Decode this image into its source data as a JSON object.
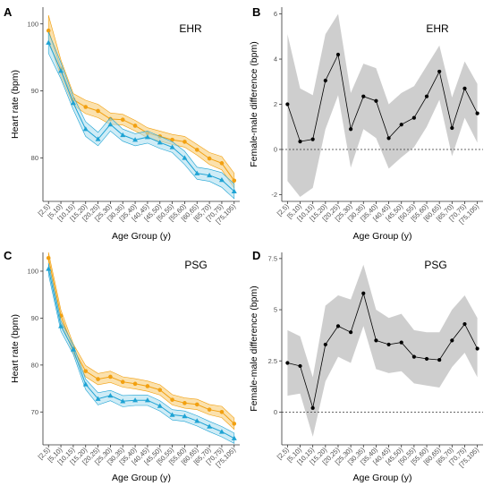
{
  "colors": {
    "female": "#f2a010",
    "female_band": "#f7c96a",
    "male": "#1ea3d4",
    "male_band": "#a8dcef",
    "diff_line": "#000000",
    "diff_band": "#bdbdbd"
  },
  "chart_data": [
    {
      "panel": "A",
      "type": "line",
      "tag": "EHR",
      "xlabel": "Age Group (y)",
      "ylabel": "Heart rate (bpm)",
      "categories": [
        "[2,5)",
        "[5,10)",
        "[10,15)",
        "[15,20)",
        "[20,25)",
        "[25,30)",
        "[30,35)",
        "[35,40)",
        "[40,45)",
        "[45,50)",
        "[50,55)",
        "[55,60)",
        "[60,65)",
        "[65,70)",
        "[70,75)",
        "[75,105)"
      ],
      "yticks": [
        80,
        90,
        100
      ],
      "ylim": [
        73.5,
        102.5
      ],
      "series": [
        {
          "marker": "circle",
          "color": "female",
          "values": [
            99,
            93.3,
            88.7,
            87.6,
            87.0,
            85.8,
            85.7,
            84.8,
            83.7,
            83.2,
            82.7,
            82.4,
            81.2,
            79.9,
            79.2,
            76.6
          ],
          "lower": [
            97.7,
            92.1,
            87.9,
            86.6,
            86.0,
            85.0,
            84.9,
            84.0,
            83.0,
            82.5,
            82.0,
            81.6,
            80.4,
            79.0,
            78.2,
            75.5
          ],
          "upper": [
            101.3,
            94.6,
            89.6,
            88.6,
            88.0,
            86.7,
            86.5,
            85.6,
            84.5,
            84.0,
            83.5,
            83.2,
            82.0,
            80.8,
            80.2,
            77.7
          ]
        },
        {
          "marker": "triangle",
          "color": "male",
          "values": [
            97.2,
            93.0,
            88.2,
            84.3,
            82.8,
            85.0,
            83.4,
            82.7,
            83.1,
            82.3,
            81.6,
            80.0,
            77.7,
            77.4,
            76.7,
            75.0
          ],
          "lower": [
            95.6,
            91.8,
            87.2,
            83.2,
            81.8,
            84.0,
            82.5,
            81.8,
            82.2,
            81.4,
            80.8,
            79.0,
            76.8,
            76.5,
            75.6,
            73.9
          ],
          "upper": [
            98.8,
            94.2,
            89.2,
            85.4,
            83.8,
            86.0,
            84.3,
            83.6,
            84.0,
            83.2,
            82.4,
            81.0,
            78.6,
            78.3,
            77.8,
            76.1
          ]
        }
      ]
    },
    {
      "panel": "B",
      "type": "line",
      "tag": "EHR",
      "xlabel": "Age Group (y)",
      "ylabel": "Female-male difference (bpm)",
      "categories": [
        "[2,5)",
        "[5,10)",
        "[10,15)",
        "[15,20)",
        "[20,25)",
        "[25,30)",
        "[30,35)",
        "[35,40)",
        "[40,45)",
        "[45,50)",
        "[50,55)",
        "[55,60)",
        "[60,65)",
        "[65,70)",
        "[70,75)",
        "[75,105)"
      ],
      "yticks": [
        -2,
        0,
        2,
        4,
        6
      ],
      "ylim": [
        -2.3,
        6.3
      ],
      "reference_line": 0,
      "values": [
        2.0,
        0.35,
        0.45,
        3.05,
        4.2,
        0.9,
        2.35,
        2.15,
        0.5,
        1.1,
        1.4,
        2.35,
        3.45,
        0.95,
        2.7,
        1.6
      ],
      "lower": [
        -1.4,
        -2.1,
        -1.7,
        0.9,
        2.4,
        -0.8,
        0.9,
        0.5,
        -0.85,
        -0.35,
        0.1,
        1.0,
        2.2,
        -0.3,
        1.4,
        0.3
      ],
      "upper": [
        5.1,
        2.7,
        2.4,
        5.1,
        6.0,
        2.5,
        3.8,
        3.6,
        2.0,
        2.5,
        2.8,
        3.7,
        4.6,
        2.3,
        3.9,
        2.9
      ]
    },
    {
      "panel": "C",
      "type": "line",
      "tag": "PSG",
      "xlabel": "Age Group (y)",
      "ylabel": "Heart rate (bpm)",
      "categories": [
        "[2,5)",
        "[5,10)",
        "[10,15)",
        "[15,20)",
        "[20,25)",
        "[25,30)",
        "[30,35)",
        "[35,40)",
        "[40,45)",
        "[45,50)",
        "[50,55)",
        "[55,60)",
        "[60,65)",
        "[65,70)",
        "[70,75)",
        "[75,105)"
      ],
      "yticks": [
        70,
        80,
        90,
        100
      ],
      "ylim": [
        63,
        104
      ],
      "series": [
        {
          "marker": "circle",
          "color": "female",
          "values": [
            102.8,
            90.5,
            83.5,
            78.7,
            77.0,
            77.5,
            76.4,
            76.0,
            75.5,
            74.7,
            72.6,
            71.9,
            71.6,
            70.5,
            70.0,
            67.5
          ],
          "lower": [
            101.5,
            89.3,
            82.5,
            77.5,
            75.8,
            76.3,
            75.3,
            74.9,
            74.4,
            73.6,
            71.5,
            70.8,
            70.5,
            69.4,
            68.8,
            66.3
          ],
          "upper": [
            104.0,
            91.7,
            84.5,
            79.9,
            78.2,
            78.7,
            77.5,
            77.1,
            76.6,
            75.8,
            73.7,
            73.0,
            72.7,
            71.6,
            71.2,
            68.7
          ]
        },
        {
          "marker": "triangle",
          "color": "male",
          "values": [
            100.5,
            88.3,
            83.3,
            75.9,
            72.8,
            73.5,
            72.3,
            72.5,
            72.5,
            71.3,
            69.4,
            69.1,
            68.1,
            66.9,
            65.8,
            64.4
          ],
          "lower": [
            99.3,
            87.2,
            82.3,
            74.8,
            71.5,
            72.4,
            71.1,
            71.4,
            71.4,
            70.2,
            68.3,
            68.0,
            67.0,
            65.8,
            64.7,
            63.3
          ],
          "upper": [
            101.7,
            89.4,
            84.3,
            77.0,
            74.1,
            74.6,
            73.5,
            73.6,
            73.6,
            72.4,
            70.5,
            70.2,
            69.2,
            68.0,
            66.9,
            65.5
          ]
        }
      ]
    },
    {
      "panel": "D",
      "type": "line",
      "tag": "PSG",
      "xlabel": "Age Group (y)",
      "ylabel": "Female-male difference (bpm)",
      "categories": [
        "[2,5)",
        "[5,10)",
        "[10,15)",
        "[15,20)",
        "[20,25)",
        "[25,30)",
        "[30,35)",
        "[35,40)",
        "[40,45)",
        "[45,50)",
        "[50,55)",
        "[55,60)",
        "[60,65)",
        "[65,70)",
        "[70,75)",
        "[75,105)"
      ],
      "yticks": [
        0.0,
        2.5,
        5.0,
        7.5
      ],
      "ytick_labels": [
        "0",
        "2.5",
        "5",
        "7.5"
      ],
      "ylim": [
        -1.6,
        7.8
      ],
      "reference_line": 0,
      "values": [
        2.4,
        2.25,
        0.2,
        3.3,
        4.2,
        3.9,
        5.8,
        3.5,
        3.3,
        3.4,
        2.7,
        2.6,
        2.55,
        3.5,
        4.3,
        3.1
      ],
      "lower": [
        0.8,
        0.9,
        -1.2,
        1.5,
        2.7,
        2.4,
        4.2,
        2.1,
        1.9,
        2.0,
        1.4,
        1.3,
        1.2,
        2.2,
        2.9,
        1.7
      ],
      "upper": [
        4.0,
        3.7,
        1.7,
        5.2,
        5.7,
        5.5,
        7.2,
        5.0,
        4.6,
        4.8,
        4.0,
        3.9,
        3.9,
        5.0,
        5.7,
        4.6
      ]
    }
  ]
}
